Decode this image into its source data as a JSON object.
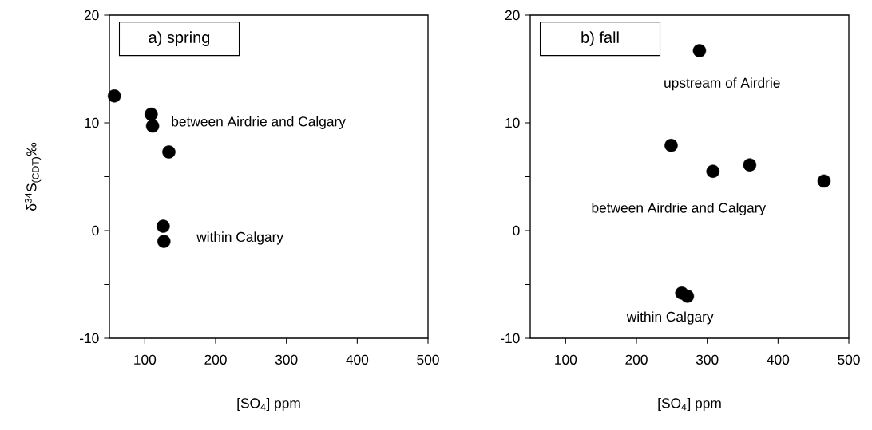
{
  "chart_data": [
    {
      "type": "scatter",
      "title": "a) spring",
      "xlabel": "[SO$_{4}$] ppm",
      "ylabel": "δ$^{34}$S$_{(CDT)}$‰",
      "x": [
        57,
        109,
        111,
        134,
        126,
        127
      ],
      "values": [
        12.5,
        10.8,
        9.7,
        7.3,
        0.4,
        -1.0
      ],
      "color": "#000000",
      "marker": "circle",
      "xlim": [
        50,
        500
      ],
      "ylim": [
        -10,
        20
      ],
      "xticks": [
        100,
        200,
        300,
        400,
        500
      ],
      "yticks": [
        -10,
        {
          "value": -5,
          "label": null
        },
        0,
        {
          "value": 5,
          "label": null
        },
        10,
        {
          "value": 15,
          "label": null
        },
        20
      ],
      "annotations": [
        "between Airdrie and Calgary",
        "within Calgary"
      ]
    },
    {
      "type": "scatter",
      "title": "b) fall",
      "xlabel": "[SO$_{4}$] ppm",
      "x": [
        289,
        249,
        308,
        360,
        465,
        264,
        272
      ],
      "values": [
        16.7,
        7.9,
        5.5,
        6.1,
        4.6,
        -5.8,
        -6.1
      ],
      "color": "#000000",
      "marker": "circle",
      "xlim": [
        50,
        500
      ],
      "ylim": [
        -10,
        20
      ],
      "xticks": [
        100,
        200,
        300,
        400,
        500
      ],
      "yticks": [
        -10,
        {
          "value": -5,
          "label": null
        },
        0,
        {
          "value": 5,
          "label": null
        },
        10,
        {
          "value": 15,
          "label": null
        },
        20
      ],
      "annotations": [
        "upstream of Airdrie",
        "between Airdrie and Calgary",
        "within Calgary"
      ]
    }
  ]
}
